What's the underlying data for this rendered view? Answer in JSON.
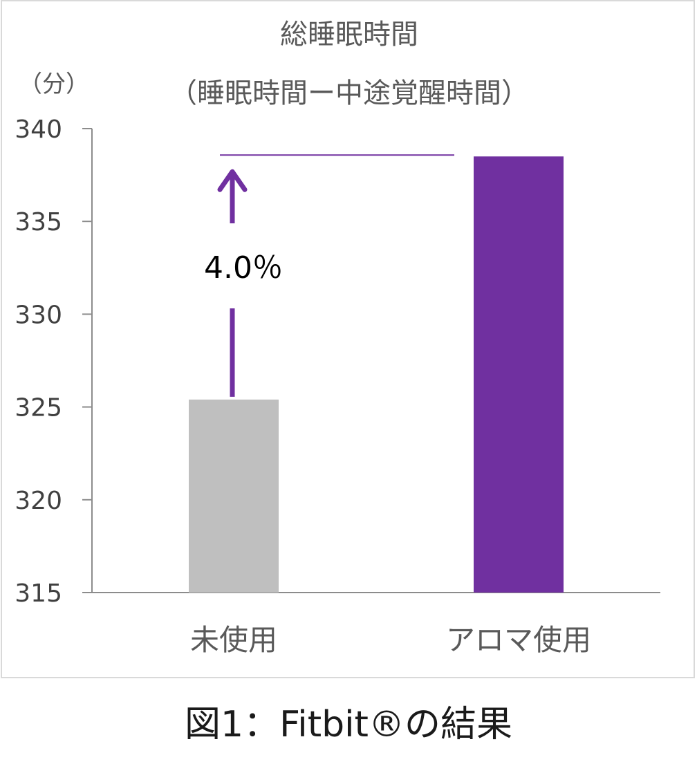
{
  "chart_data": {
    "type": "bar",
    "title": "総睡眠時間",
    "subtitle": "（睡眠時間ー中途覚醒時間）",
    "ylabel": "（分）",
    "xlabel": "",
    "categories": [
      "未使用",
      "アロマ使用"
    ],
    "values": [
      325.4,
      338.5
    ],
    "ylim": [
      315,
      340
    ],
    "yticks": [
      "315",
      "320",
      "325",
      "330",
      "335",
      "340"
    ],
    "ytick_values": [
      315,
      320,
      325,
      330,
      335,
      340
    ],
    "annotation": "4.0％",
    "grid": false,
    "legend": "none"
  },
  "colors": {
    "bar_unused": "#bfbfbf",
    "bar_aroma": "#7030a0",
    "arrow": "#7030a0",
    "axis": "#8c8c8c"
  },
  "caption": "図1：Fitbit®の結果"
}
